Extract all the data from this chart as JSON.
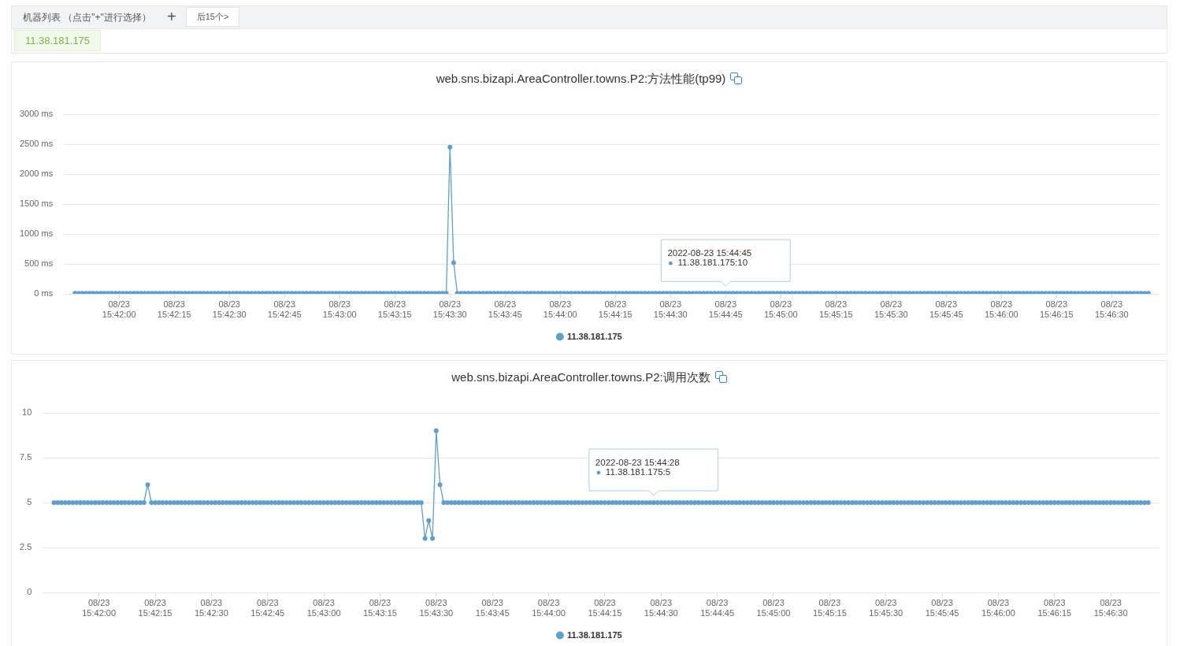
{
  "chart_data": [
    {
      "type": "other",
      "annotations": [
        "机器列表 （点击\"+\"进行选择）",
        "+",
        "后15个>",
        "11.38.181.175"
      ]
    },
    {
      "type": "line",
      "title": "web.sns.bizapi.AreaController.towns.P2:方法性能(tp99)",
      "xlim": [
        "2022-08-23T15:41:45",
        "2022-08-23T15:46:43"
      ],
      "xticks": [
        {
          "value": "2022-08-23T15:42:00",
          "label": "08/23\n15:42:00"
        },
        {
          "value": "2022-08-23T15:42:15",
          "label": "08/23\n15:42:15"
        },
        {
          "value": "2022-08-23T15:42:30",
          "label": "08/23\n15:42:30"
        },
        {
          "value": "2022-08-23T15:42:45",
          "label": "08/23\n15:42:45"
        },
        {
          "value": "2022-08-23T15:43:00",
          "label": "08/23\n15:43:00"
        },
        {
          "value": "2022-08-23T15:43:15",
          "label": "08/23\n15:43:15"
        },
        {
          "value": "2022-08-23T15:43:30",
          "label": "08/23\n15:43:30"
        },
        {
          "value": "2022-08-23T15:43:45",
          "label": "08/23\n15:43:45"
        },
        {
          "value": "2022-08-23T15:44:00",
          "label": "08/23\n15:44:00"
        },
        {
          "value": "2022-08-23T15:44:15",
          "label": "08/23\n15:44:15"
        },
        {
          "value": "2022-08-23T15:44:30",
          "label": "08/23\n15:44:30"
        },
        {
          "value": "2022-08-23T15:44:45",
          "label": "08/23\n15:44:45"
        },
        {
          "value": "2022-08-23T15:45:00",
          "label": "08/23\n15:45:00"
        },
        {
          "value": "2022-08-23T15:45:15",
          "label": "08/23\n15:45:15"
        },
        {
          "value": "2022-08-23T15:45:30",
          "label": "08/23\n15:45:30"
        },
        {
          "value": "2022-08-23T15:45:45",
          "label": "08/23\n15:45:45"
        },
        {
          "value": "2022-08-23T15:46:00",
          "label": "08/23\n15:46:00"
        },
        {
          "value": "2022-08-23T15:46:15",
          "label": "08/23\n15:46:15"
        },
        {
          "value": "2022-08-23T15:46:30",
          "label": "08/23\n15:46:30"
        }
      ],
      "ylim": [
        0,
        3000
      ],
      "yticks": [
        {
          "value": 0,
          "label": "0 ms"
        },
        {
          "value": 500,
          "label": "500 ms"
        },
        {
          "value": 1000,
          "label": "1000 ms"
        },
        {
          "value": 1500,
          "label": "1500 ms"
        },
        {
          "value": 2000,
          "label": "2000 ms"
        },
        {
          "value": 2500,
          "label": "2500 ms"
        },
        {
          "value": 3000,
          "label": "3000 ms"
        }
      ],
      "grid": "y",
      "legend": "bottom",
      "marker": "circle",
      "line_style": "solid",
      "annotations": [
        {
          "text": "2022-08-23 15:44:45\n11.38.181.175:10",
          "x": "2022-08-23T15:44:45",
          "y": 10
        }
      ],
      "x": [
        "2022-08-23T15:41:48",
        "2022-08-23T15:41:49",
        "2022-08-23T15:41:50",
        "2022-08-23T15:41:51",
        "2022-08-23T15:41:52",
        "2022-08-23T15:41:53",
        "2022-08-23T15:41:54",
        "2022-08-23T15:41:55",
        "2022-08-23T15:41:56",
        "2022-08-23T15:41:57",
        "2022-08-23T15:41:58",
        "2022-08-23T15:41:59",
        "2022-08-23T15:42:00",
        "2022-08-23T15:42:01",
        "2022-08-23T15:42:02",
        "2022-08-23T15:42:03",
        "2022-08-23T15:42:04",
        "2022-08-23T15:42:05",
        "2022-08-23T15:42:06",
        "2022-08-23T15:42:07",
        "2022-08-23T15:42:08",
        "2022-08-23T15:42:09",
        "2022-08-23T15:42:10",
        "2022-08-23T15:42:11",
        "2022-08-23T15:42:12",
        "2022-08-23T15:42:13",
        "2022-08-23T15:42:14",
        "2022-08-23T15:42:15",
        "2022-08-23T15:42:16",
        "2022-08-23T15:42:17",
        "2022-08-23T15:42:18",
        "2022-08-23T15:42:19",
        "2022-08-23T15:42:20",
        "2022-08-23T15:42:21",
        "2022-08-23T15:42:22",
        "2022-08-23T15:42:23",
        "2022-08-23T15:42:24",
        "2022-08-23T15:42:25",
        "2022-08-23T15:42:26",
        "2022-08-23T15:42:27",
        "2022-08-23T15:42:28",
        "2022-08-23T15:42:29",
        "2022-08-23T15:42:30",
        "2022-08-23T15:42:31",
        "2022-08-23T15:42:32",
        "2022-08-23T15:42:33",
        "2022-08-23T15:42:34",
        "2022-08-23T15:42:35",
        "2022-08-23T15:42:36",
        "2022-08-23T15:42:37",
        "2022-08-23T15:42:38",
        "2022-08-23T15:42:39",
        "2022-08-23T15:42:40",
        "2022-08-23T15:42:41",
        "2022-08-23T15:42:42",
        "2022-08-23T15:42:43",
        "2022-08-23T15:42:44",
        "2022-08-23T15:42:45",
        "2022-08-23T15:42:46",
        "2022-08-23T15:42:47",
        "2022-08-23T15:42:48",
        "2022-08-23T15:42:49",
        "2022-08-23T15:42:50",
        "2022-08-23T15:42:51",
        "2022-08-23T15:42:52",
        "2022-08-23T15:42:53",
        "2022-08-23T15:42:54",
        "2022-08-23T15:42:55",
        "2022-08-23T15:42:56",
        "2022-08-23T15:42:57",
        "2022-08-23T15:42:58",
        "2022-08-23T15:42:59",
        "2022-08-23T15:43:00",
        "2022-08-23T15:43:01",
        "2022-08-23T15:43:02",
        "2022-08-23T15:43:03",
        "2022-08-23T15:43:04",
        "2022-08-23T15:43:05",
        "2022-08-23T15:43:06",
        "2022-08-23T15:43:07",
        "2022-08-23T15:43:08",
        "2022-08-23T15:43:09",
        "2022-08-23T15:43:10",
        "2022-08-23T15:43:11",
        "2022-08-23T15:43:12",
        "2022-08-23T15:43:13",
        "2022-08-23T15:43:14",
        "2022-08-23T15:43:15",
        "2022-08-23T15:43:16",
        "2022-08-23T15:43:17",
        "2022-08-23T15:43:18",
        "2022-08-23T15:43:19",
        "2022-08-23T15:43:20",
        "2022-08-23T15:43:21",
        "2022-08-23T15:43:22",
        "2022-08-23T15:43:23",
        "2022-08-23T15:43:24",
        "2022-08-23T15:43:25",
        "2022-08-23T15:43:26",
        "2022-08-23T15:43:27",
        "2022-08-23T15:43:28",
        "2022-08-23T15:43:29",
        "2022-08-23T15:43:30",
        "2022-08-23T15:43:31",
        "2022-08-23T15:43:32",
        "2022-08-23T15:43:33",
        "2022-08-23T15:43:34",
        "2022-08-23T15:43:35",
        "2022-08-23T15:43:36",
        "2022-08-23T15:43:37",
        "2022-08-23T15:43:38",
        "2022-08-23T15:43:39",
        "2022-08-23T15:43:40",
        "2022-08-23T15:43:41",
        "2022-08-23T15:43:42",
        "2022-08-23T15:43:43",
        "2022-08-23T15:43:44",
        "2022-08-23T15:43:45",
        "2022-08-23T15:43:46",
        "2022-08-23T15:43:47",
        "2022-08-23T15:43:48",
        "2022-08-23T15:43:49",
        "2022-08-23T15:43:50",
        "2022-08-23T15:43:51",
        "2022-08-23T15:43:52",
        "2022-08-23T15:43:53",
        "2022-08-23T15:43:54",
        "2022-08-23T15:43:55",
        "2022-08-23T15:43:56",
        "2022-08-23T15:43:57",
        "2022-08-23T15:43:58",
        "2022-08-23T15:43:59",
        "2022-08-23T15:44:00",
        "2022-08-23T15:44:01",
        "2022-08-23T15:44:02",
        "2022-08-23T15:44:03",
        "2022-08-23T15:44:04",
        "2022-08-23T15:44:05",
        "2022-08-23T15:44:06",
        "2022-08-23T15:44:07",
        "2022-08-23T15:44:08",
        "2022-08-23T15:44:09",
        "2022-08-23T15:44:10",
        "2022-08-23T15:44:11",
        "2022-08-23T15:44:12",
        "2022-08-23T15:44:13",
        "2022-08-23T15:44:14",
        "2022-08-23T15:44:15",
        "2022-08-23T15:44:16",
        "2022-08-23T15:44:17",
        "2022-08-23T15:44:18",
        "2022-08-23T15:44:19",
        "2022-08-23T15:44:20",
        "2022-08-23T15:44:21",
        "2022-08-23T15:44:22",
        "2022-08-23T15:44:23",
        "2022-08-23T15:44:24",
        "2022-08-23T15:44:25",
        "2022-08-23T15:44:26",
        "2022-08-23T15:44:27",
        "2022-08-23T15:44:28",
        "2022-08-23T15:44:29",
        "2022-08-23T15:44:30",
        "2022-08-23T15:44:31",
        "2022-08-23T15:44:32",
        "2022-08-23T15:44:33",
        "2022-08-23T15:44:34",
        "2022-08-23T15:44:35",
        "2022-08-23T15:44:36",
        "2022-08-23T15:44:37",
        "2022-08-23T15:44:38",
        "2022-08-23T15:44:39",
        "2022-08-23T15:44:40",
        "2022-08-23T15:44:41",
        "2022-08-23T15:44:42",
        "2022-08-23T15:44:43",
        "2022-08-23T15:44:44",
        "2022-08-23T15:44:45",
        "2022-08-23T15:44:46",
        "2022-08-23T15:44:47",
        "2022-08-23T15:44:48",
        "2022-08-23T15:44:49",
        "2022-08-23T15:44:50",
        "2022-08-23T15:44:51",
        "2022-08-23T15:44:52",
        "2022-08-23T15:44:53",
        "2022-08-23T15:44:54",
        "2022-08-23T15:44:55",
        "2022-08-23T15:44:56",
        "2022-08-23T15:44:57",
        "2022-08-23T15:44:58",
        "2022-08-23T15:44:59",
        "2022-08-23T15:45:00",
        "2022-08-23T15:45:01",
        "2022-08-23T15:45:02",
        "2022-08-23T15:45:03",
        "2022-08-23T15:45:04",
        "2022-08-23T15:45:05",
        "2022-08-23T15:45:06",
        "2022-08-23T15:45:07",
        "2022-08-23T15:45:08",
        "2022-08-23T15:45:09",
        "2022-08-23T15:45:10",
        "2022-08-23T15:45:11",
        "2022-08-23T15:45:12",
        "2022-08-23T15:45:13",
        "2022-08-23T15:45:14",
        "2022-08-23T15:45:15",
        "2022-08-23T15:45:16",
        "2022-08-23T15:45:17",
        "2022-08-23T15:45:18",
        "2022-08-23T15:45:19",
        "2022-08-23T15:45:20",
        "2022-08-23T15:45:21",
        "2022-08-23T15:45:22",
        "2022-08-23T15:45:23",
        "2022-08-23T15:45:24",
        "2022-08-23T15:45:25",
        "2022-08-23T15:45:26",
        "2022-08-23T15:45:27",
        "2022-08-23T15:45:28",
        "2022-08-23T15:45:29",
        "2022-08-23T15:45:30",
        "2022-08-23T15:45:31",
        "2022-08-23T15:45:32",
        "2022-08-23T15:45:33",
        "2022-08-23T15:45:34",
        "2022-08-23T15:45:35",
        "2022-08-23T15:45:36",
        "2022-08-23T15:45:37",
        "2022-08-23T15:45:38",
        "2022-08-23T15:45:39",
        "2022-08-23T15:45:40",
        "2022-08-23T15:45:41",
        "2022-08-23T15:45:42",
        "2022-08-23T15:45:43",
        "2022-08-23T15:45:44",
        "2022-08-23T15:45:45",
        "2022-08-23T15:45:46",
        "2022-08-23T15:45:47",
        "2022-08-23T15:45:48",
        "2022-08-23T15:45:49",
        "2022-08-23T15:45:50",
        "2022-08-23T15:45:51",
        "2022-08-23T15:45:52",
        "2022-08-23T15:45:53",
        "2022-08-23T15:45:54",
        "2022-08-23T15:45:55",
        "2022-08-23T15:45:56",
        "2022-08-23T15:45:57",
        "2022-08-23T15:45:58",
        "2022-08-23T15:45:59",
        "2022-08-23T15:46:00",
        "2022-08-23T15:46:01",
        "2022-08-23T15:46:02",
        "2022-08-23T15:46:03",
        "2022-08-23T15:46:04",
        "2022-08-23T15:46:05",
        "2022-08-23T15:46:06",
        "2022-08-23T15:46:07",
        "2022-08-23T15:46:08",
        "2022-08-23T15:46:09",
        "2022-08-23T15:46:10",
        "2022-08-23T15:46:11",
        "2022-08-23T15:46:12",
        "2022-08-23T15:46:13",
        "2022-08-23T15:46:14",
        "2022-08-23T15:46:15",
        "2022-08-23T15:46:16",
        "2022-08-23T15:46:17",
        "2022-08-23T15:46:18",
        "2022-08-23T15:46:19",
        "2022-08-23T15:46:20",
        "2022-08-23T15:46:21",
        "2022-08-23T15:46:22",
        "2022-08-23T15:46:23",
        "2022-08-23T15:46:24",
        "2022-08-23T15:46:25",
        "2022-08-23T15:46:26",
        "2022-08-23T15:46:27",
        "2022-08-23T15:46:28",
        "2022-08-23T15:46:29",
        "2022-08-23T15:46:30",
        "2022-08-23T15:46:31",
        "2022-08-23T15:46:32",
        "2022-08-23T15:46:33",
        "2022-08-23T15:46:34",
        "2022-08-23T15:46:35",
        "2022-08-23T15:46:36",
        "2022-08-23T15:46:37",
        "2022-08-23T15:46:38",
        "2022-08-23T15:46:39",
        "2022-08-23T15:46:40"
      ],
      "series": [
        {
          "name": "11.38.181.175",
          "color": "#5e9fd0",
          "values": [
            10,
            10,
            10,
            10,
            10,
            10,
            10,
            10,
            10,
            10,
            10,
            10,
            10,
            10,
            10,
            10,
            10,
            10,
            10,
            10,
            10,
            10,
            10,
            10,
            10,
            10,
            10,
            10,
            10,
            10,
            10,
            10,
            10,
            10,
            10,
            10,
            10,
            10,
            10,
            10,
            10,
            10,
            10,
            10,
            10,
            10,
            10,
            10,
            10,
            10,
            10,
            10,
            10,
            10,
            10,
            10,
            10,
            10,
            10,
            10,
            10,
            10,
            10,
            10,
            10,
            10,
            10,
            10,
            10,
            10,
            10,
            10,
            10,
            10,
            10,
            10,
            10,
            10,
            10,
            10,
            10,
            10,
            10,
            10,
            10,
            10,
            10,
            10,
            10,
            10,
            10,
            10,
            10,
            10,
            10,
            10,
            10,
            10,
            10,
            10,
            10,
            10,
            2450,
            520,
            10,
            10,
            10,
            10,
            10,
            10,
            10,
            10,
            10,
            10,
            10,
            10,
            10,
            10,
            10,
            10,
            10,
            10,
            10,
            10,
            10,
            10,
            10,
            10,
            10,
            10,
            10,
            10,
            10,
            10,
            10,
            10,
            10,
            10,
            10,
            10,
            10,
            10,
            10,
            10,
            10,
            10,
            10,
            10,
            10,
            10,
            10,
            10,
            10,
            10,
            10,
            10,
            10,
            10,
            10,
            10,
            10,
            10,
            10,
            10,
            10,
            10,
            10,
            10,
            10,
            10,
            10,
            10,
            10,
            10,
            10,
            10,
            10,
            10,
            10,
            10,
            10,
            10,
            10,
            10,
            10,
            10,
            10,
            10,
            10,
            10,
            10,
            10,
            10,
            10,
            10,
            10,
            10,
            10,
            10,
            10,
            10,
            10,
            10,
            10,
            10,
            10,
            10,
            10,
            10,
            10,
            10,
            10,
            10,
            10,
            10,
            10,
            10,
            10,
            10,
            10,
            10,
            10,
            10,
            10,
            10,
            10,
            10,
            10,
            10,
            10,
            10,
            10,
            10,
            10,
            10,
            10,
            10,
            10,
            10,
            10,
            10,
            10,
            10,
            10,
            10,
            10,
            10,
            10,
            10,
            10,
            10,
            10,
            10,
            10,
            10,
            10,
            10,
            10,
            10,
            10,
            10,
            10,
            10,
            10,
            10,
            10,
            10,
            10,
            10,
            10,
            10,
            10,
            10,
            10,
            10,
            10,
            10,
            10,
            10,
            10,
            10,
            10,
            10,
            10,
            10,
            10,
            10,
            10,
            10,
            10,
            10,
            10,
            10
          ]
        }
      ]
    },
    {
      "type": "line",
      "title": "web.sns.bizapi.AreaController.towns.P2:调用次数",
      "xlim": [
        "2022-08-23T15:41:45",
        "2022-08-23T15:46:43"
      ],
      "xticks": [
        {
          "value": "2022-08-23T15:42:00",
          "label": "08/23\n15:42:00"
        },
        {
          "value": "2022-08-23T15:42:15",
          "label": "08/23\n15:42:15"
        },
        {
          "value": "2022-08-23T15:42:30",
          "label": "08/23\n15:42:30"
        },
        {
          "value": "2022-08-23T15:42:45",
          "label": "08/23\n15:42:45"
        },
        {
          "value": "2022-08-23T15:43:00",
          "label": "08/23\n15:43:00"
        },
        {
          "value": "2022-08-23T15:43:15",
          "label": "08/23\n15:43:15"
        },
        {
          "value": "2022-08-23T15:43:30",
          "label": "08/23\n15:43:30"
        },
        {
          "value": "2022-08-23T15:43:45",
          "label": "08/23\n15:43:45"
        },
        {
          "value": "2022-08-23T15:44:00",
          "label": "08/23\n15:44:00"
        },
        {
          "value": "2022-08-23T15:44:15",
          "label": "08/23\n15:44:15"
        },
        {
          "value": "2022-08-23T15:44:30",
          "label": "08/23\n15:44:30"
        },
        {
          "value": "2022-08-23T15:44:45",
          "label": "08/23\n15:44:45"
        },
        {
          "value": "2022-08-23T15:45:00",
          "label": "08/23\n15:45:00"
        },
        {
          "value": "2022-08-23T15:45:15",
          "label": "08/23\n15:45:15"
        },
        {
          "value": "2022-08-23T15:45:30",
          "label": "08/23\n15:45:30"
        },
        {
          "value": "2022-08-23T15:45:45",
          "label": "08/23\n15:45:45"
        },
        {
          "value": "2022-08-23T15:46:00",
          "label": "08/23\n15:46:00"
        },
        {
          "value": "2022-08-23T15:46:15",
          "label": "08/23\n15:46:15"
        },
        {
          "value": "2022-08-23T15:46:30",
          "label": "08/23\n15:46:30"
        }
      ],
      "ylim": [
        0,
        10
      ],
      "yticks": [
        0,
        2.5,
        5,
        7.5,
        10
      ],
      "grid": "y",
      "legend": "bottom",
      "marker": "circle",
      "line_style": "solid",
      "annotations": [
        {
          "text": "2022-08-23 15:44:28\n11.38.181.175:5",
          "x": "2022-08-23T15:44:28",
          "y": 5
        }
      ],
      "x": [
        "2022-08-23T15:41:48",
        "2022-08-23T15:41:49",
        "2022-08-23T15:41:50",
        "2022-08-23T15:41:51",
        "2022-08-23T15:41:52",
        "2022-08-23T15:41:53",
        "2022-08-23T15:41:54",
        "2022-08-23T15:41:55",
        "2022-08-23T15:41:56",
        "2022-08-23T15:41:57",
        "2022-08-23T15:41:58",
        "2022-08-23T15:41:59",
        "2022-08-23T15:42:00",
        "2022-08-23T15:42:01",
        "2022-08-23T15:42:02",
        "2022-08-23T15:42:03",
        "2022-08-23T15:42:04",
        "2022-08-23T15:42:05",
        "2022-08-23T15:42:06",
        "2022-08-23T15:42:07",
        "2022-08-23T15:42:08",
        "2022-08-23T15:42:09",
        "2022-08-23T15:42:10",
        "2022-08-23T15:42:11",
        "2022-08-23T15:42:12",
        "2022-08-23T15:42:13",
        "2022-08-23T15:42:14",
        "2022-08-23T15:42:15",
        "2022-08-23T15:42:16",
        "2022-08-23T15:42:17",
        "2022-08-23T15:42:18",
        "2022-08-23T15:42:19",
        "2022-08-23T15:42:20",
        "2022-08-23T15:42:21",
        "2022-08-23T15:42:22",
        "2022-08-23T15:42:23",
        "2022-08-23T15:42:24",
        "2022-08-23T15:42:25",
        "2022-08-23T15:42:26",
        "2022-08-23T15:42:27",
        "2022-08-23T15:42:28",
        "2022-08-23T15:42:29",
        "2022-08-23T15:42:30",
        "2022-08-23T15:42:31",
        "2022-08-23T15:42:32",
        "2022-08-23T15:42:33",
        "2022-08-23T15:42:34",
        "2022-08-23T15:42:35",
        "2022-08-23T15:42:36",
        "2022-08-23T15:42:37",
        "2022-08-23T15:42:38",
        "2022-08-23T15:42:39",
        "2022-08-23T15:42:40",
        "2022-08-23T15:42:41",
        "2022-08-23T15:42:42",
        "2022-08-23T15:42:43",
        "2022-08-23T15:42:44",
        "2022-08-23T15:42:45",
        "2022-08-23T15:42:46",
        "2022-08-23T15:42:47",
        "2022-08-23T15:42:48",
        "2022-08-23T15:42:49",
        "2022-08-23T15:42:50",
        "2022-08-23T15:42:51",
        "2022-08-23T15:42:52",
        "2022-08-23T15:42:53",
        "2022-08-23T15:42:54",
        "2022-08-23T15:42:55",
        "2022-08-23T15:42:56",
        "2022-08-23T15:42:57",
        "2022-08-23T15:42:58",
        "2022-08-23T15:42:59",
        "2022-08-23T15:43:00",
        "2022-08-23T15:43:01",
        "2022-08-23T15:43:02",
        "2022-08-23T15:43:03",
        "2022-08-23T15:43:04",
        "2022-08-23T15:43:05",
        "2022-08-23T15:43:06",
        "2022-08-23T15:43:07",
        "2022-08-23T15:43:08",
        "2022-08-23T15:43:09",
        "2022-08-23T15:43:10",
        "2022-08-23T15:43:11",
        "2022-08-23T15:43:12",
        "2022-08-23T15:43:13",
        "2022-08-23T15:43:14",
        "2022-08-23T15:43:15",
        "2022-08-23T15:43:16",
        "2022-08-23T15:43:17",
        "2022-08-23T15:43:18",
        "2022-08-23T15:43:19",
        "2022-08-23T15:43:20",
        "2022-08-23T15:43:21",
        "2022-08-23T15:43:22",
        "2022-08-23T15:43:23",
        "2022-08-23T15:43:24",
        "2022-08-23T15:43:25",
        "2022-08-23T15:43:26",
        "2022-08-23T15:43:27",
        "2022-08-23T15:43:28",
        "2022-08-23T15:43:29",
        "2022-08-23T15:43:30",
        "2022-08-23T15:43:31",
        "2022-08-23T15:43:32",
        "2022-08-23T15:43:33",
        "2022-08-23T15:43:34",
        "2022-08-23T15:43:35",
        "2022-08-23T15:43:36",
        "2022-08-23T15:43:37",
        "2022-08-23T15:43:38",
        "2022-08-23T15:43:39",
        "2022-08-23T15:43:40",
        "2022-08-23T15:43:41",
        "2022-08-23T15:43:42",
        "2022-08-23T15:43:43",
        "2022-08-23T15:43:44",
        "2022-08-23T15:43:45",
        "2022-08-23T15:43:46",
        "2022-08-23T15:43:47",
        "2022-08-23T15:43:48",
        "2022-08-23T15:43:49",
        "2022-08-23T15:43:50",
        "2022-08-23T15:43:51",
        "2022-08-23T15:43:52",
        "2022-08-23T15:43:53",
        "2022-08-23T15:43:54",
        "2022-08-23T15:43:55",
        "2022-08-23T15:43:56",
        "2022-08-23T15:43:57",
        "2022-08-23T15:43:58",
        "2022-08-23T15:43:59",
        "2022-08-23T15:44:00",
        "2022-08-23T15:44:01",
        "2022-08-23T15:44:02",
        "2022-08-23T15:44:03",
        "2022-08-23T15:44:04",
        "2022-08-23T15:44:05",
        "2022-08-23T15:44:06",
        "2022-08-23T15:44:07",
        "2022-08-23T15:44:08",
        "2022-08-23T15:44:09",
        "2022-08-23T15:44:10",
        "2022-08-23T15:44:11",
        "2022-08-23T15:44:12",
        "2022-08-23T15:44:13",
        "2022-08-23T15:44:14",
        "2022-08-23T15:44:15",
        "2022-08-23T15:44:16",
        "2022-08-23T15:44:17",
        "2022-08-23T15:44:18",
        "2022-08-23T15:44:19",
        "2022-08-23T15:44:20",
        "2022-08-23T15:44:21",
        "2022-08-23T15:44:22",
        "2022-08-23T15:44:23",
        "2022-08-23T15:44:24",
        "2022-08-23T15:44:25",
        "2022-08-23T15:44:26",
        "2022-08-23T15:44:27",
        "2022-08-23T15:44:28",
        "2022-08-23T15:44:29",
        "2022-08-23T15:44:30",
        "2022-08-23T15:44:31",
        "2022-08-23T15:44:32",
        "2022-08-23T15:44:33",
        "2022-08-23T15:44:34",
        "2022-08-23T15:44:35",
        "2022-08-23T15:44:36",
        "2022-08-23T15:44:37",
        "2022-08-23T15:44:38",
        "2022-08-23T15:44:39",
        "2022-08-23T15:44:40",
        "2022-08-23T15:44:41",
        "2022-08-23T15:44:42",
        "2022-08-23T15:44:43",
        "2022-08-23T15:44:44",
        "2022-08-23T15:44:45",
        "2022-08-23T15:44:46",
        "2022-08-23T15:44:47",
        "2022-08-23T15:44:48",
        "2022-08-23T15:44:49",
        "2022-08-23T15:44:50",
        "2022-08-23T15:44:51",
        "2022-08-23T15:44:52",
        "2022-08-23T15:44:53",
        "2022-08-23T15:44:54",
        "2022-08-23T15:44:55",
        "2022-08-23T15:44:56",
        "2022-08-23T15:44:57",
        "2022-08-23T15:44:58",
        "2022-08-23T15:44:59",
        "2022-08-23T15:45:00",
        "2022-08-23T15:45:01",
        "2022-08-23T15:45:02",
        "2022-08-23T15:45:03",
        "2022-08-23T15:45:04",
        "2022-08-23T15:45:05",
        "2022-08-23T15:45:06",
        "2022-08-23T15:45:07",
        "2022-08-23T15:45:08",
        "2022-08-23T15:45:09",
        "2022-08-23T15:45:10",
        "2022-08-23T15:45:11",
        "2022-08-23T15:45:12",
        "2022-08-23T15:45:13",
        "2022-08-23T15:45:14",
        "2022-08-23T15:45:15",
        "2022-08-23T15:45:16",
        "2022-08-23T15:45:17",
        "2022-08-23T15:45:18",
        "2022-08-23T15:45:19",
        "2022-08-23T15:45:20",
        "2022-08-23T15:45:21",
        "2022-08-23T15:45:22",
        "2022-08-23T15:45:23",
        "2022-08-23T15:45:24",
        "2022-08-23T15:45:25",
        "2022-08-23T15:45:26",
        "2022-08-23T15:45:27",
        "2022-08-23T15:45:28",
        "2022-08-23T15:45:29",
        "2022-08-23T15:45:30",
        "2022-08-23T15:45:31",
        "2022-08-23T15:45:32",
        "2022-08-23T15:45:33",
        "2022-08-23T15:45:34",
        "2022-08-23T15:45:35",
        "2022-08-23T15:45:36",
        "2022-08-23T15:45:37",
        "2022-08-23T15:45:38",
        "2022-08-23T15:45:39",
        "2022-08-23T15:45:40",
        "2022-08-23T15:45:41",
        "2022-08-23T15:45:42",
        "2022-08-23T15:45:43",
        "2022-08-23T15:45:44",
        "2022-08-23T15:45:45",
        "2022-08-23T15:45:46",
        "2022-08-23T15:45:47",
        "2022-08-23T15:45:48",
        "2022-08-23T15:45:49",
        "2022-08-23T15:45:50",
        "2022-08-23T15:45:51",
        "2022-08-23T15:45:52",
        "2022-08-23T15:45:53",
        "2022-08-23T15:45:54",
        "2022-08-23T15:45:55",
        "2022-08-23T15:45:56",
        "2022-08-23T15:45:57",
        "2022-08-23T15:45:58",
        "2022-08-23T15:45:59",
        "2022-08-23T15:46:00",
        "2022-08-23T15:46:01",
        "2022-08-23T15:46:02",
        "2022-08-23T15:46:03",
        "2022-08-23T15:46:04",
        "2022-08-23T15:46:05",
        "2022-08-23T15:46:06",
        "2022-08-23T15:46:07",
        "2022-08-23T15:46:08",
        "2022-08-23T15:46:09",
        "2022-08-23T15:46:10",
        "2022-08-23T15:46:11",
        "2022-08-23T15:46:12",
        "2022-08-23T15:46:13",
        "2022-08-23T15:46:14",
        "2022-08-23T15:46:15",
        "2022-08-23T15:46:16",
        "2022-08-23T15:46:17",
        "2022-08-23T15:46:18",
        "2022-08-23T15:46:19",
        "2022-08-23T15:46:20",
        "2022-08-23T15:46:21",
        "2022-08-23T15:46:22",
        "2022-08-23T15:46:23",
        "2022-08-23T15:46:24",
        "2022-08-23T15:46:25",
        "2022-08-23T15:46:26",
        "2022-08-23T15:46:27",
        "2022-08-23T15:46:28",
        "2022-08-23T15:46:29",
        "2022-08-23T15:46:30",
        "2022-08-23T15:46:31",
        "2022-08-23T15:46:32",
        "2022-08-23T15:46:33",
        "2022-08-23T15:46:34",
        "2022-08-23T15:46:35",
        "2022-08-23T15:46:36",
        "2022-08-23T15:46:37",
        "2022-08-23T15:46:38",
        "2022-08-23T15:46:39",
        "2022-08-23T15:46:40"
      ],
      "series": [
        {
          "name": "11.38.181.175",
          "color": "#5e9fd0",
          "values": [
            5,
            5,
            5,
            5,
            5,
            5,
            5,
            5,
            5,
            5,
            5,
            5,
            5,
            5,
            5,
            5,
            5,
            5,
            5,
            5,
            5,
            5,
            5,
            5,
            5,
            6,
            5,
            5,
            5,
            5,
            5,
            5,
            5,
            5,
            5,
            5,
            5,
            5,
            5,
            5,
            5,
            5,
            5,
            5,
            5,
            5,
            5,
            5,
            5,
            5,
            5,
            5,
            5,
            5,
            5,
            5,
            5,
            5,
            5,
            5,
            5,
            5,
            5,
            5,
            5,
            5,
            5,
            5,
            5,
            5,
            5,
            5,
            5,
            5,
            5,
            5,
            5,
            5,
            5,
            5,
            5,
            5,
            5,
            5,
            5,
            5,
            5,
            5,
            5,
            5,
            5,
            5,
            5,
            5,
            5,
            5,
            5,
            5,
            5,
            3,
            4,
            3,
            9,
            6,
            5,
            5,
            5,
            5,
            5,
            5,
            5,
            5,
            5,
            5,
            5,
            5,
            5,
            5,
            5,
            5,
            5,
            5,
            5,
            5,
            5,
            5,
            5,
            5,
            5,
            5,
            5,
            5,
            5,
            5,
            5,
            5,
            5,
            5,
            5,
            5,
            5,
            5,
            5,
            5,
            5,
            5,
            5,
            5,
            5,
            5,
            5,
            5,
            5,
            5,
            5,
            5,
            5,
            5,
            5,
            5,
            5,
            5,
            5,
            5,
            5,
            5,
            5,
            5,
            5,
            5,
            5,
            5,
            5,
            5,
            5,
            5,
            5,
            5,
            5,
            5,
            5,
            5,
            5,
            5,
            5,
            5,
            5,
            5,
            5,
            5,
            5,
            5,
            5,
            5,
            5,
            5,
            5,
            5,
            5,
            5,
            5,
            5,
            5,
            5,
            5,
            5,
            5,
            5,
            5,
            5,
            5,
            5,
            5,
            5,
            5,
            5,
            5,
            5,
            5,
            5,
            5,
            5,
            5,
            5,
            5,
            5,
            5,
            5,
            5,
            5,
            5,
            5,
            5,
            5,
            5,
            5,
            5,
            5,
            5,
            5,
            5,
            5,
            5,
            5,
            5,
            5,
            5,
            5,
            5,
            5,
            5,
            5,
            5,
            5,
            5,
            5,
            5,
            5,
            5,
            5,
            5,
            5,
            5,
            5,
            5,
            5,
            5,
            5,
            5,
            5,
            5,
            5,
            5,
            5,
            5,
            5,
            5,
            5,
            5,
            5,
            5,
            5,
            5,
            5,
            5,
            5,
            5,
            5,
            5,
            5,
            5,
            5,
            5
          ]
        }
      ]
    }
  ]
}
